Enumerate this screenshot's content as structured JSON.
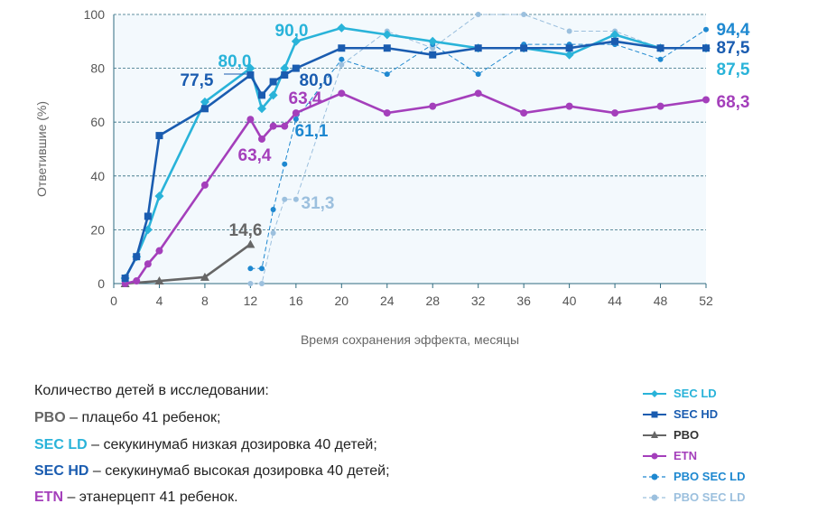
{
  "chart_data": {
    "type": "line",
    "title": "",
    "xlabel": "Время сохранения эффекта, месяцы",
    "ylabel": "Ответившие (%)",
    "xlim": [
      0,
      52
    ],
    "ylim": [
      0,
      100
    ],
    "xticks": [
      0,
      4,
      8,
      12,
      16,
      20,
      24,
      28,
      32,
      36,
      40,
      44,
      48,
      52
    ],
    "yticks": [
      0,
      20,
      40,
      60,
      80,
      100
    ],
    "grid": "horizontal dashed",
    "background": "#f3f9fd",
    "legend_position": "bottom-right",
    "series": [
      {
        "name": "SEC LD",
        "color": "#29b3d9",
        "marker": "diamond",
        "dash": false,
        "x": [
          1,
          2,
          3,
          4,
          8,
          12,
          13,
          14,
          15,
          16,
          20,
          24,
          28,
          32,
          36,
          40,
          44,
          48,
          52
        ],
        "y": [
          2,
          10,
          20,
          32.5,
          67.5,
          80,
          65,
          70,
          80,
          90,
          95,
          92.5,
          90,
          87.5,
          87.5,
          85,
          92.5,
          87.5,
          87.5
        ]
      },
      {
        "name": "SEC HD",
        "color": "#1a5cb0",
        "marker": "square",
        "dash": false,
        "x": [
          1,
          2,
          3,
          4,
          8,
          12,
          13,
          14,
          15,
          16,
          20,
          24,
          28,
          32,
          36,
          40,
          44,
          48,
          52
        ],
        "y": [
          2,
          10,
          25,
          55,
          65,
          77.5,
          70,
          75,
          77.5,
          80,
          87.5,
          87.5,
          85,
          87.5,
          87.5,
          87.5,
          90,
          87.5,
          87.5
        ]
      },
      {
        "name": "PBO",
        "color": "#666666",
        "marker": "triangle",
        "dash": false,
        "x": [
          1,
          4,
          8,
          12
        ],
        "y": [
          0,
          1,
          2.4,
          14.6
        ]
      },
      {
        "name": "ETN",
        "color": "#a43fbb",
        "marker": "circle",
        "dash": false,
        "x": [
          1,
          2,
          3,
          4,
          8,
          12,
          13,
          14,
          15,
          16,
          20,
          24,
          28,
          32,
          36,
          40,
          44,
          48,
          52
        ],
        "y": [
          0,
          1,
          7.3,
          12.2,
          36.6,
          61,
          53.7,
          58.5,
          58.5,
          63.4,
          70.7,
          63.4,
          65.9,
          70.7,
          63.4,
          65.9,
          63.4,
          65.9,
          68.3
        ]
      },
      {
        "name": "PBO SEC LD",
        "color": "#1e88d0",
        "marker": "circle",
        "dash": true,
        "x": [
          12,
          13,
          14,
          15,
          16,
          20,
          24,
          28,
          32,
          36,
          40,
          44,
          48,
          52
        ],
        "y": [
          5.6,
          5.6,
          27.5,
          44.4,
          61.1,
          83.3,
          77.8,
          88.9,
          77.8,
          88.9,
          88.9,
          88.9,
          83.3,
          94.4
        ]
      },
      {
        "name": "PBO SEC LD",
        "color": "#9cc0de",
        "marker": "circle",
        "dash": true,
        "x": [
          12,
          13,
          14,
          15,
          16,
          20,
          24,
          28,
          32,
          36,
          40,
          44,
          48
        ],
        "y": [
          0,
          0,
          18.8,
          31.3,
          31.3,
          81.3,
          93.8,
          87.5,
          100,
          100,
          93.8,
          93.8,
          87.5
        ]
      }
    ],
    "annotations": [
      {
        "text": "80,0",
        "series": 0
      },
      {
        "text": "77,5",
        "series": 1
      },
      {
        "text": "90,0",
        "series": 0
      },
      {
        "text": "80,0",
        "series": 1
      },
      {
        "text": "63,4",
        "series": 3
      },
      {
        "text": "63,4",
        "series": 3
      },
      {
        "text": "61,1",
        "series": 4
      },
      {
        "text": "31,3",
        "series": 5
      },
      {
        "text": "14,6",
        "series": 2
      },
      {
        "text": "94,4",
        "series": 4
      },
      {
        "text": "87,5",
        "series": 1
      },
      {
        "text": "87,5",
        "series": 0
      },
      {
        "text": "68,3",
        "series": 3
      }
    ]
  },
  "notes": {
    "heading": "Количество детей в исследовании:",
    "lines": [
      {
        "abbr": "PBO",
        "color": "#666666",
        "text": " – плацебо 41 ребенок;"
      },
      {
        "abbr": "SEC LD",
        "color": "#29b3d9",
        "text": " – секукинумаб низкая дозировка 40 детей;"
      },
      {
        "abbr": "SEC HD",
        "color": "#1a5cb0",
        "text": " – секукинумаб высокая дозировка 40 детей;"
      },
      {
        "abbr": "ETN",
        "color": "#a43fbb",
        "text": " – этанерцепт 41 ребенок."
      }
    ]
  }
}
